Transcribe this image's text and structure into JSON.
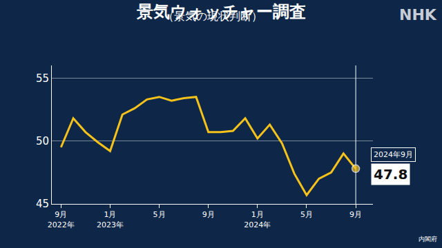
{
  "chart_data": {
    "type": "line",
    "title": "景気ウォッチャー調査",
    "subtitle": "（景気の現状判断）",
    "source": "内閣府",
    "logo": "NHK",
    "categories": [
      "9月\n2022年",
      null,
      null,
      null,
      "1月\n2023年",
      null,
      null,
      null,
      "5月",
      null,
      null,
      null,
      "9月",
      null,
      null,
      null,
      "1月\n2024年",
      null,
      null,
      null,
      "5月",
      null,
      null,
      null,
      "9月"
    ],
    "values": [
      49.5,
      51.8,
      50.7,
      49.9,
      49.2,
      52.1,
      52.6,
      53.3,
      53.5,
      53.2,
      53.4,
      53.5,
      50.7,
      50.7,
      50.8,
      51.8,
      50.2,
      51.3,
      49.8,
      47.4,
      45.7,
      47.0,
      47.5,
      49.0,
      47.8
    ],
    "color": "#f5c21b",
    "marker": "last",
    "ylim": [
      45,
      56
    ],
    "yticks": [
      45,
      50,
      55
    ],
    "grid": true,
    "callout": {
      "label": "2024年9月",
      "value": 47.8
    }
  }
}
